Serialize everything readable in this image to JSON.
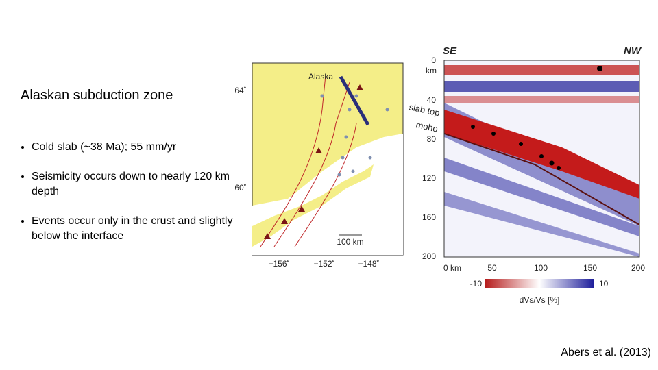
{
  "title": "Alaskan subduction zone",
  "bullets": [
    "Cold slab (~38 Ma); 55 mm/yr",
    "Seismicity occurs down to nearly 120 km depth",
    "Events occur only in the crust and slightly below the interface"
  ],
  "map": {
    "label": "Alaska",
    "lat_labels": [
      "64˚",
      "60˚"
    ],
    "lon_labels": [
      "−156˚",
      "−152˚",
      "−148˚"
    ],
    "scale": "100 km"
  },
  "section": {
    "left": "SE",
    "right": "NW",
    "depth_labels": [
      "0",
      "40",
      "80",
      "120",
      "160",
      "200"
    ],
    "depth_unit": "km",
    "slab_top": "slab top",
    "moho": "moho",
    "distance_labels": [
      "0 km",
      "50",
      "100",
      "150",
      "200"
    ],
    "colorbar": {
      "min": "-10",
      "max": "10",
      "label": "dVs/Vs [%]"
    }
  },
  "citation": "Abers et al. (2013)"
}
